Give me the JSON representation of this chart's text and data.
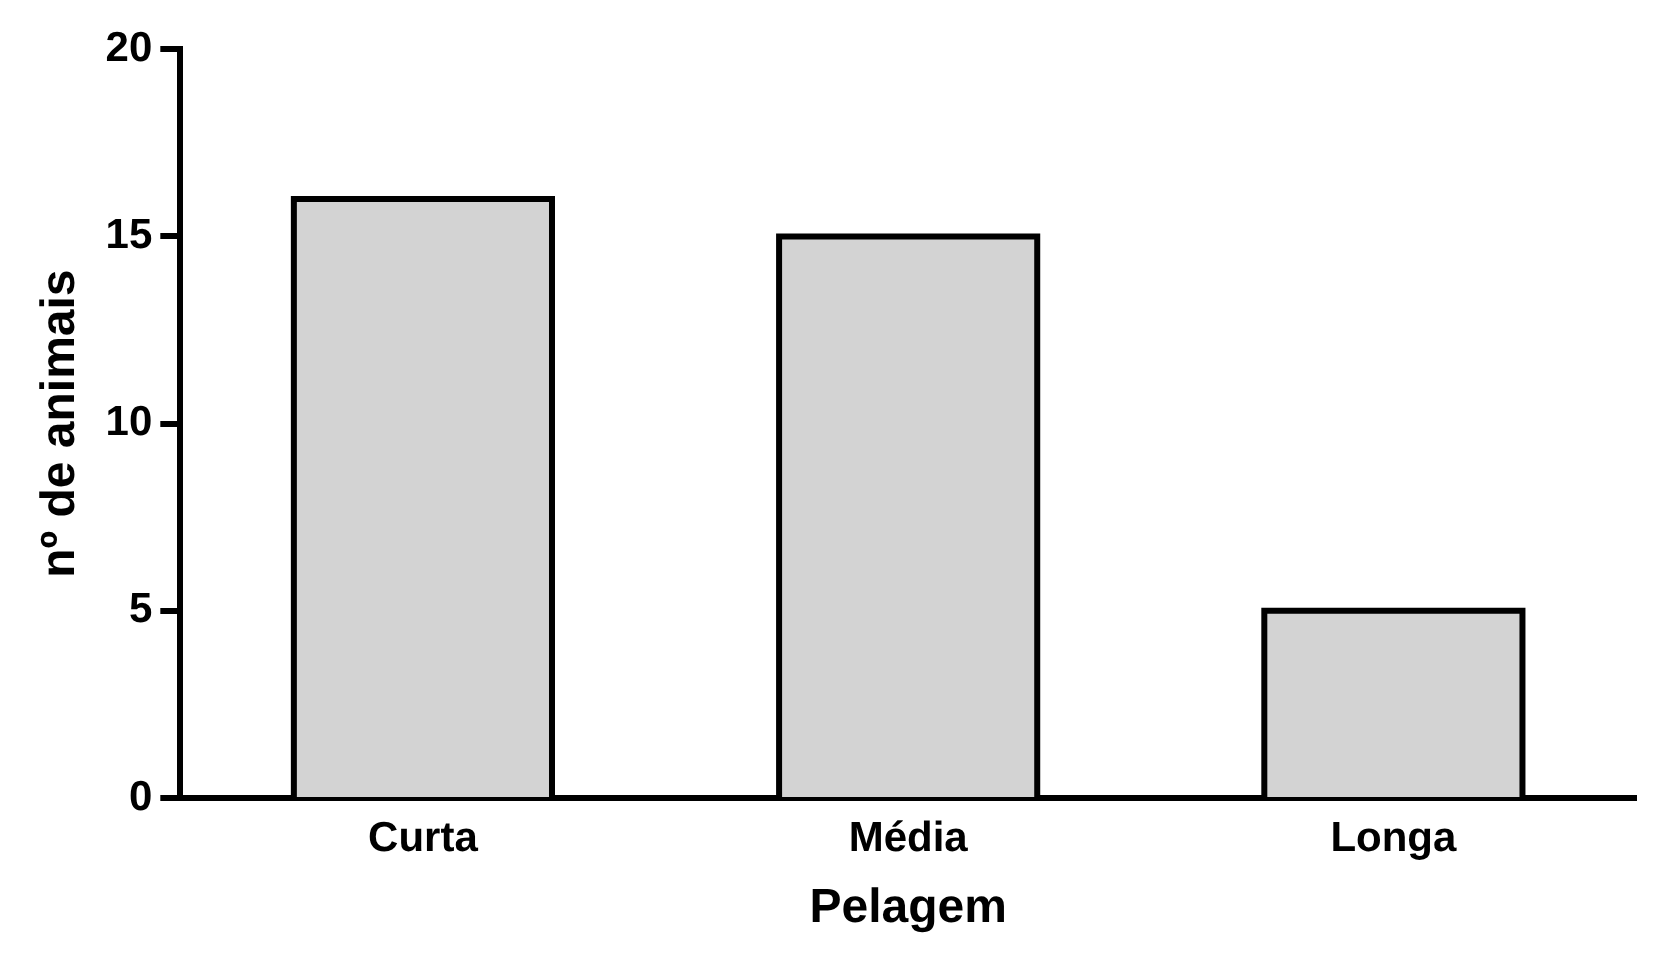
{
  "chart_data": {
    "type": "bar",
    "xlabel": "Pelagem",
    "ylabel": "nº de animais",
    "categories": [
      "Curta",
      "Média",
      "Longa"
    ],
    "values": [
      16,
      15,
      5
    ],
    "color": "#d3d3d3",
    "ylim": [
      0,
      20
    ],
    "yticks": [
      0,
      5,
      10,
      15,
      20
    ],
    "grid": false,
    "legend": false
  }
}
